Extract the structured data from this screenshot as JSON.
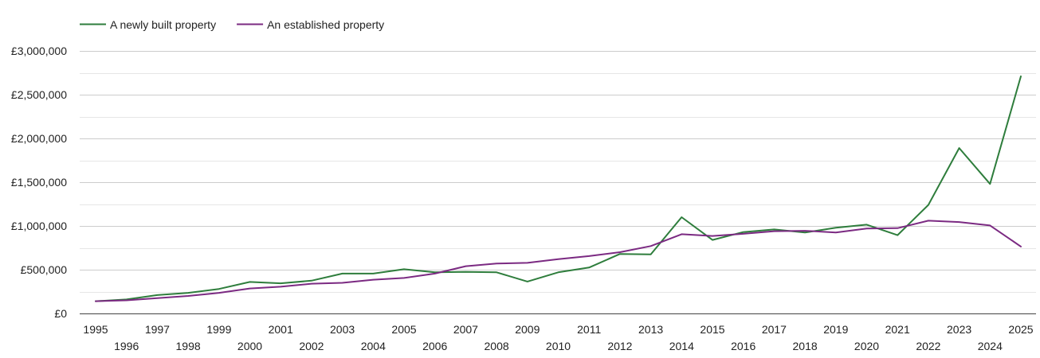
{
  "chart_data": {
    "type": "line",
    "title": "",
    "xlabel": "",
    "ylabel": "",
    "ylim": [
      0,
      3000000
    ],
    "yticks": [
      {
        "value": 0,
        "label": "£0"
      },
      {
        "value": 500000,
        "label": "£500,000"
      },
      {
        "value": 1000000,
        "label": "£1,000,000"
      },
      {
        "value": 1500000,
        "label": "£1,500,000"
      },
      {
        "value": 2000000,
        "label": "£2,000,000"
      },
      {
        "value": 2500000,
        "label": "£2,500,000"
      },
      {
        "value": 3000000,
        "label": "£3,000,000"
      }
    ],
    "x": [
      1995,
      1996,
      1997,
      1998,
      1999,
      2000,
      2001,
      2002,
      2003,
      2004,
      2005,
      2006,
      2007,
      2008,
      2009,
      2010,
      2011,
      2012,
      2013,
      2014,
      2015,
      2016,
      2017,
      2018,
      2019,
      2020,
      2021,
      2022,
      2023,
      2024,
      2025
    ],
    "legend_position": "top-left",
    "grid": true,
    "series": [
      {
        "name": "A newly built property",
        "color": "#2e7d3c",
        "values": [
          140000,
          160000,
          210000,
          235000,
          280000,
          360000,
          345000,
          375000,
          455000,
          455000,
          505000,
          470000,
          475000,
          470000,
          365000,
          470000,
          525000,
          680000,
          675000,
          1100000,
          840000,
          930000,
          960000,
          925000,
          980000,
          1015000,
          895000,
          1240000,
          1890000,
          1480000,
          2710000
        ]
      },
      {
        "name": "An established property",
        "color": "#7b2a82",
        "values": [
          140000,
          150000,
          175000,
          200000,
          235000,
          285000,
          305000,
          340000,
          350000,
          385000,
          405000,
          455000,
          540000,
          570000,
          578000,
          620000,
          655000,
          700000,
          770000,
          905000,
          885000,
          910000,
          940000,
          945000,
          925000,
          970000,
          975000,
          1060000,
          1045000,
          1005000,
          765000
        ]
      }
    ]
  }
}
